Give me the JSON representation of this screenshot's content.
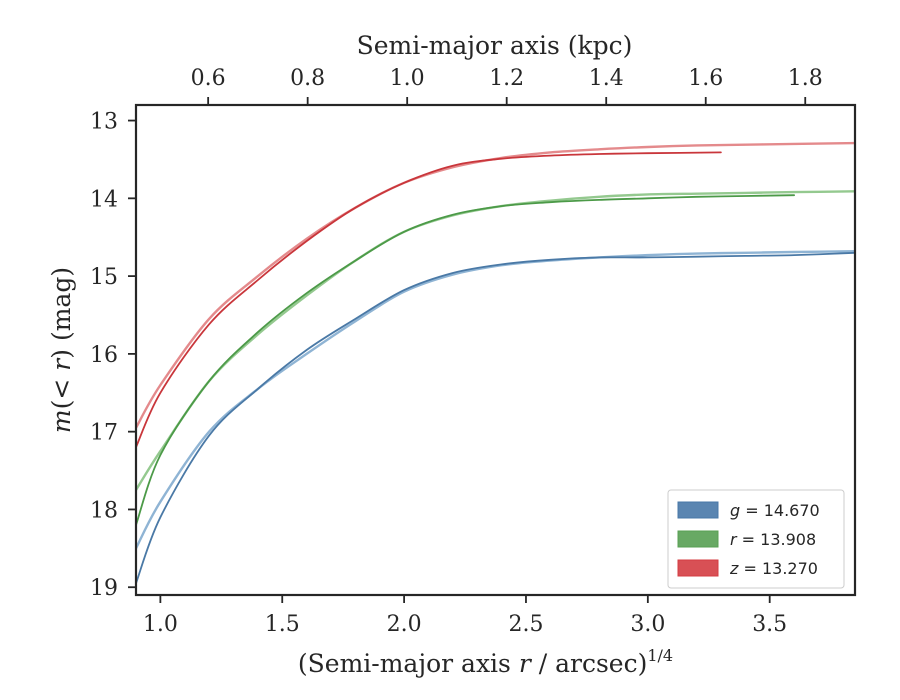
{
  "chart_data": {
    "type": "line",
    "xlabel": "(Semi-major axis r / arcsec)^1/4",
    "ylabel": "m(< r) (mag)",
    "x2label": "Semi-major axis (kpc)",
    "xlim": [
      0.9,
      3.85
    ],
    "ylim": [
      19.1,
      12.8
    ],
    "x2lim": [
      0.455,
      1.9
    ],
    "y_inverted": true,
    "xticks": [
      1.0,
      1.5,
      2.0,
      2.5,
      3.0,
      3.5
    ],
    "xtick_labels": [
      "1.0",
      "1.5",
      "2.0",
      "2.5",
      "3.0",
      "3.5"
    ],
    "yticks": [
      13,
      14,
      15,
      16,
      17,
      18,
      19
    ],
    "ytick_labels": [
      "13",
      "14",
      "15",
      "16",
      "17",
      "18",
      "19"
    ],
    "x2ticks": [
      0.6,
      0.8,
      1.0,
      1.2,
      1.4,
      1.6,
      1.8
    ],
    "x2tick_labels": [
      "0.6",
      "0.8",
      "1.0",
      "1.2",
      "1.4",
      "1.6",
      "1.8"
    ],
    "grid": false,
    "legend_position": "bottom-right",
    "legend": [
      {
        "label": "g = 14.670",
        "color": "#4878a8"
      },
      {
        "label": "r = 13.908",
        "color": "#58a053"
      },
      {
        "label": "z = 13.270",
        "color": "#d43d42"
      }
    ],
    "series": [
      {
        "name": "g = 14.670",
        "style": "model",
        "color": "#8fb4d4",
        "x": [
          0.9,
          1.0,
          1.2,
          1.4,
          1.6,
          1.8,
          2.0,
          2.2,
          2.4,
          2.6,
          2.8,
          3.0,
          3.2,
          3.4,
          3.6,
          3.85
        ],
        "y": [
          18.5,
          17.9,
          17.0,
          16.45,
          16.0,
          15.58,
          15.2,
          14.98,
          14.86,
          14.8,
          14.76,
          14.73,
          14.71,
          14.7,
          14.69,
          14.68
        ]
      },
      {
        "name": "g = 14.670",
        "style": "data",
        "color": "#4a79a6",
        "x": [
          0.9,
          1.0,
          1.2,
          1.4,
          1.6,
          1.8,
          2.0,
          2.2,
          2.4,
          2.6,
          2.8,
          3.0,
          3.2,
          3.4,
          3.6,
          3.85
        ],
        "y": [
          18.95,
          18.1,
          17.05,
          16.45,
          15.95,
          15.55,
          15.18,
          14.96,
          14.85,
          14.79,
          14.76,
          14.76,
          14.75,
          14.74,
          14.73,
          14.7
        ]
      },
      {
        "name": "r = 13.908",
        "style": "model",
        "color": "#94c98f",
        "x": [
          0.9,
          1.0,
          1.2,
          1.4,
          1.6,
          1.8,
          2.0,
          2.2,
          2.4,
          2.6,
          2.8,
          3.0,
          3.2,
          3.4,
          3.6,
          3.85
        ],
        "y": [
          17.75,
          17.25,
          16.35,
          15.75,
          15.25,
          14.8,
          14.43,
          14.22,
          14.1,
          14.03,
          13.98,
          13.95,
          13.94,
          13.93,
          13.92,
          13.91
        ]
      },
      {
        "name": "r = 13.908",
        "style": "data",
        "color": "#4c9a48",
        "x": [
          0.9,
          1.0,
          1.2,
          1.4,
          1.6,
          1.8,
          2.0,
          2.2,
          2.4,
          2.6,
          2.8,
          3.0,
          3.2,
          3.4,
          3.6
        ],
        "y": [
          18.2,
          17.3,
          16.35,
          15.72,
          15.22,
          14.8,
          14.43,
          14.21,
          14.1,
          14.05,
          14.02,
          14.0,
          13.98,
          13.97,
          13.96
        ]
      },
      {
        "name": "z = 13.270",
        "style": "model",
        "color": "#e48a8c",
        "x": [
          0.9,
          1.0,
          1.2,
          1.4,
          1.6,
          1.8,
          2.0,
          2.2,
          2.4,
          2.6,
          2.8,
          3.0,
          3.2,
          3.4,
          3.6,
          3.85
        ],
        "y": [
          16.95,
          16.4,
          15.55,
          15.0,
          14.52,
          14.12,
          13.8,
          13.6,
          13.48,
          13.41,
          13.37,
          13.34,
          13.32,
          13.31,
          13.3,
          13.29
        ]
      },
      {
        "name": "z = 13.270",
        "style": "data",
        "color": "#c9363b",
        "x": [
          0.9,
          1.0,
          1.2,
          1.4,
          1.6,
          1.8,
          2.0,
          2.2,
          2.4,
          2.6,
          2.8,
          3.0,
          3.3
        ],
        "y": [
          17.2,
          16.5,
          15.62,
          15.05,
          14.55,
          14.12,
          13.8,
          13.58,
          13.49,
          13.45,
          13.43,
          13.42,
          13.41
        ]
      }
    ]
  }
}
